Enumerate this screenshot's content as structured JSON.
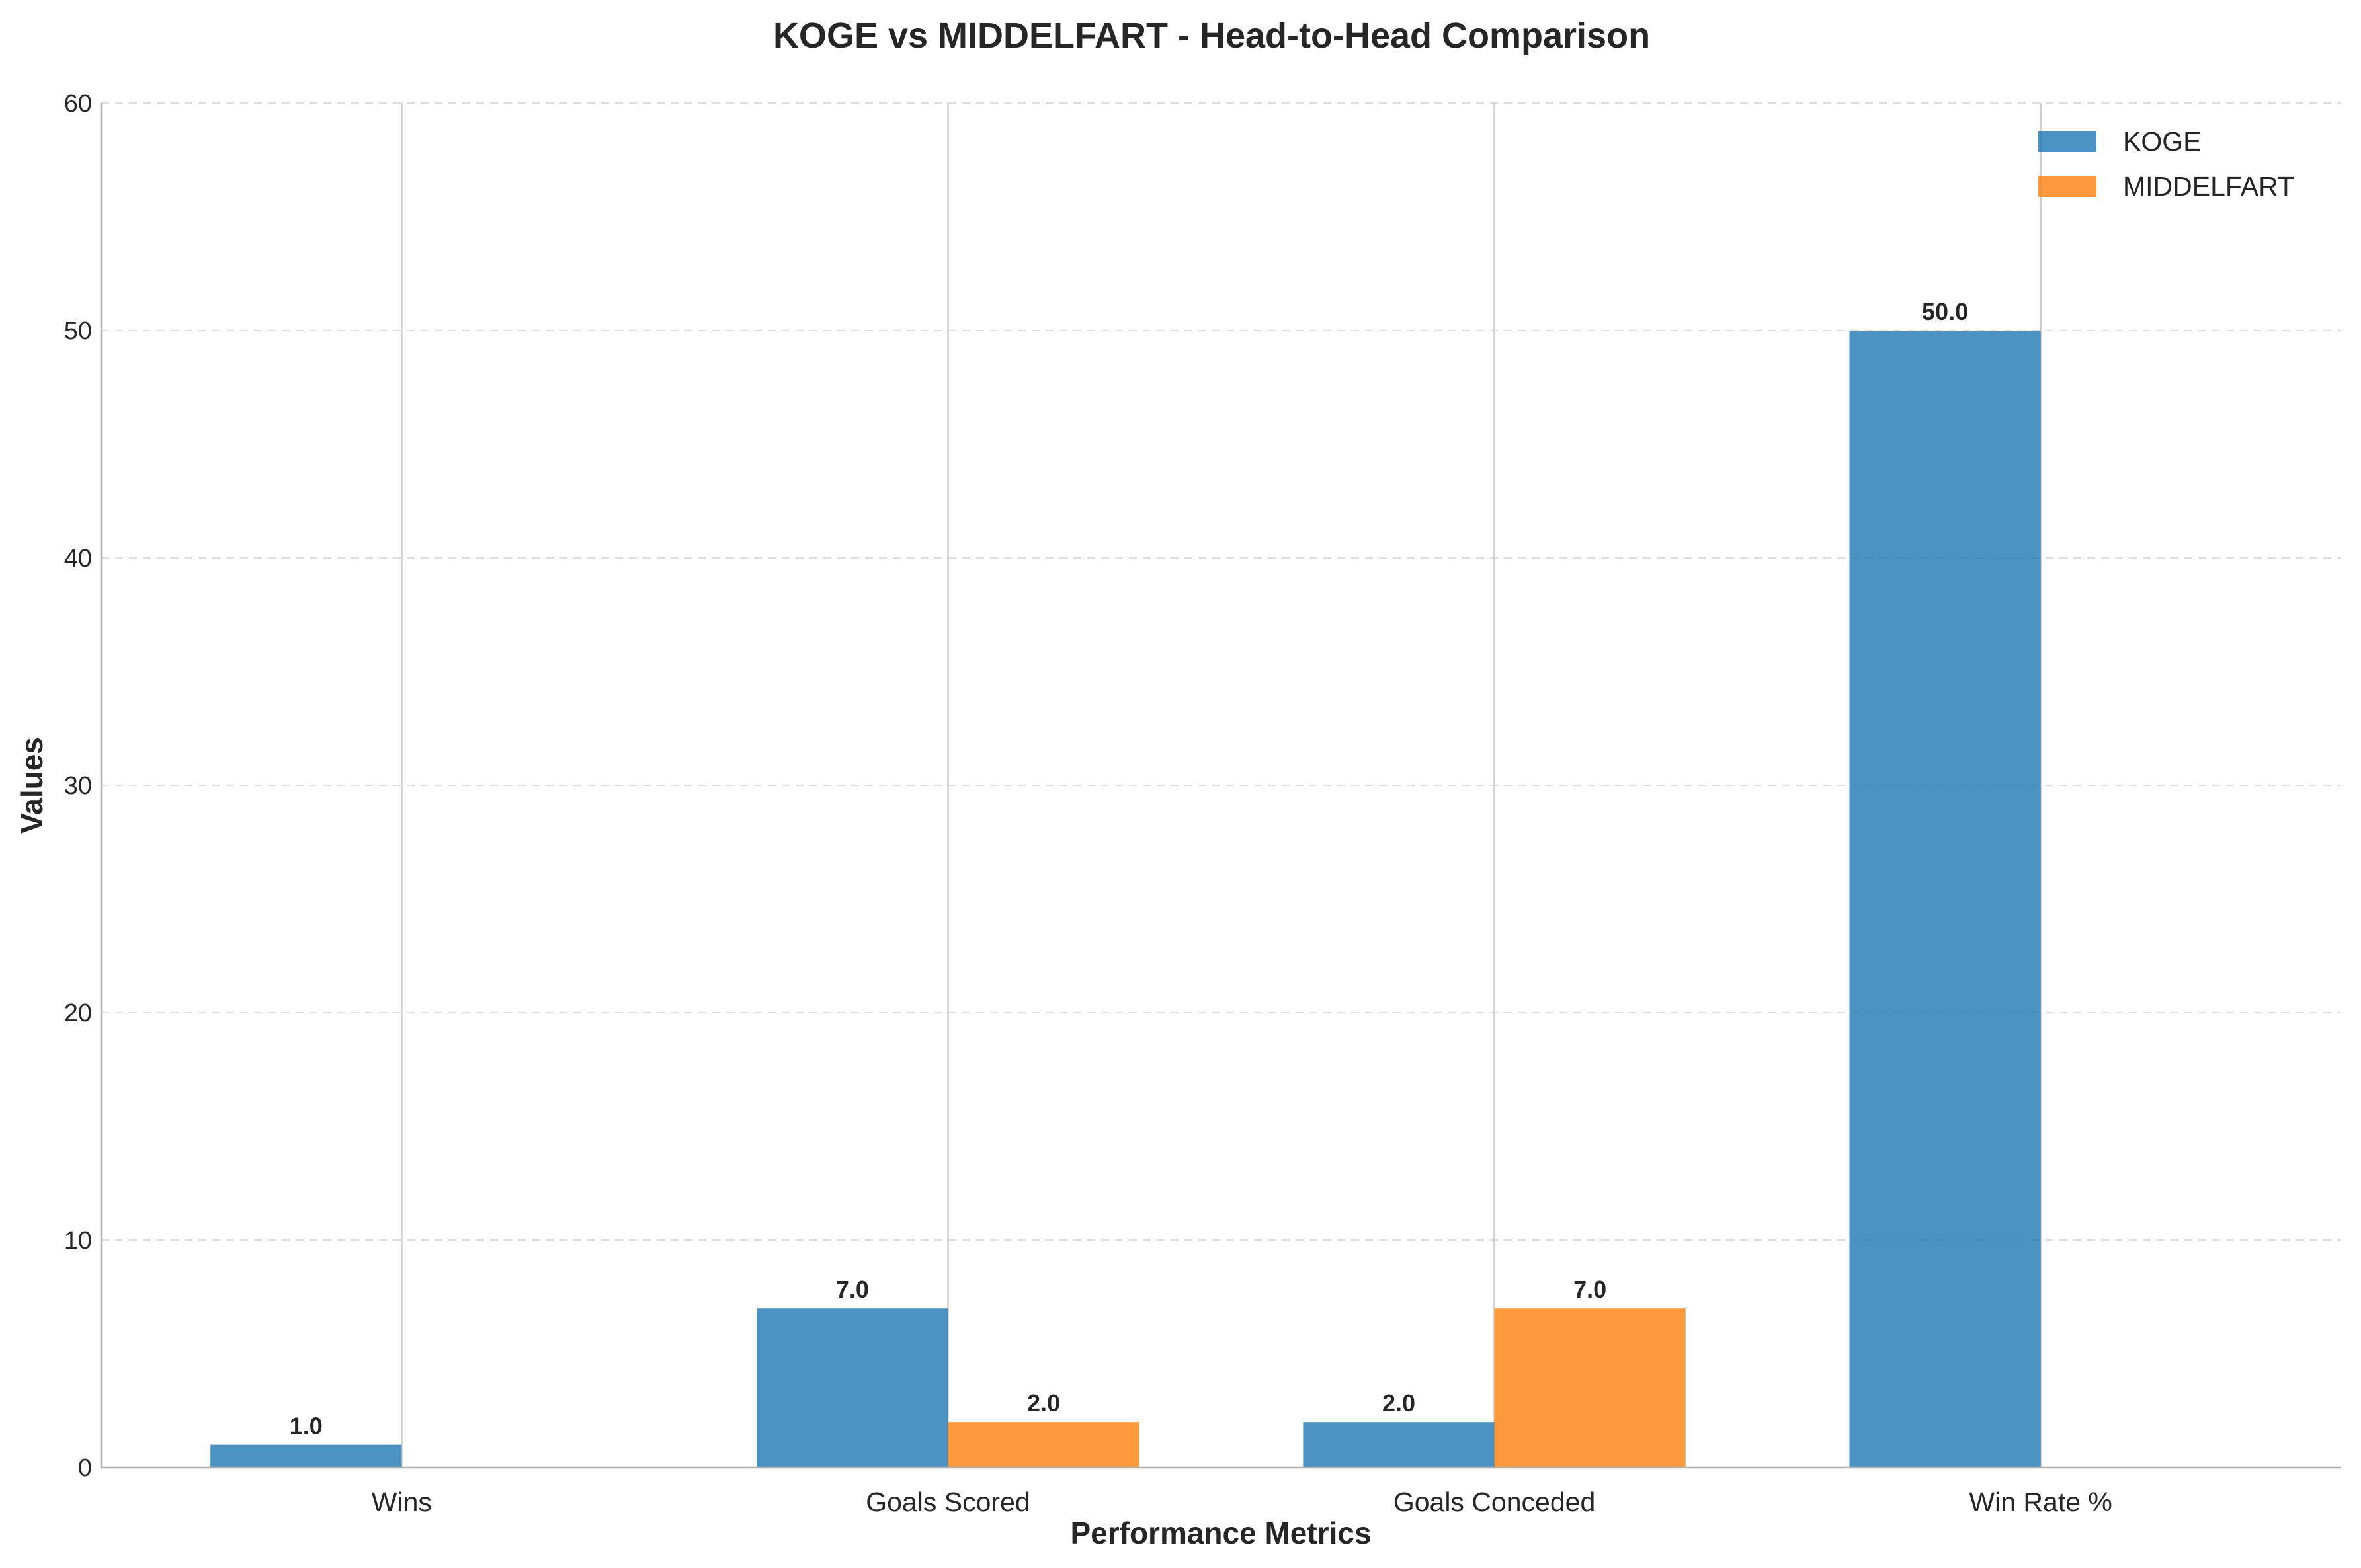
{
  "chart_data": {
    "type": "bar",
    "title": "KOGE vs MIDDELFART - Head-to-Head Comparison",
    "xlabel": "Performance Metrics",
    "ylabel": "Values",
    "categories": [
      "Wins",
      "Goals Scored",
      "Goals Conceded",
      "Win Rate %"
    ],
    "series": [
      {
        "name": "KOGE",
        "values": [
          1.0,
          7.0,
          2.0,
          50.0
        ],
        "color": "#1f77b4",
        "labels": [
          "1.0",
          "7.0",
          "2.0",
          "50.0"
        ]
      },
      {
        "name": "MIDDELFART",
        "values": [
          0,
          2.0,
          7.0,
          0
        ],
        "color": "#ff7f0e",
        "labels": [
          "",
          "2.0",
          "7.0",
          ""
        ]
      }
    ],
    "ylim": [
      0,
      60
    ],
    "yticks": [
      0,
      10,
      20,
      30,
      40,
      50,
      60
    ],
    "grid": true,
    "legend": "top-right"
  }
}
